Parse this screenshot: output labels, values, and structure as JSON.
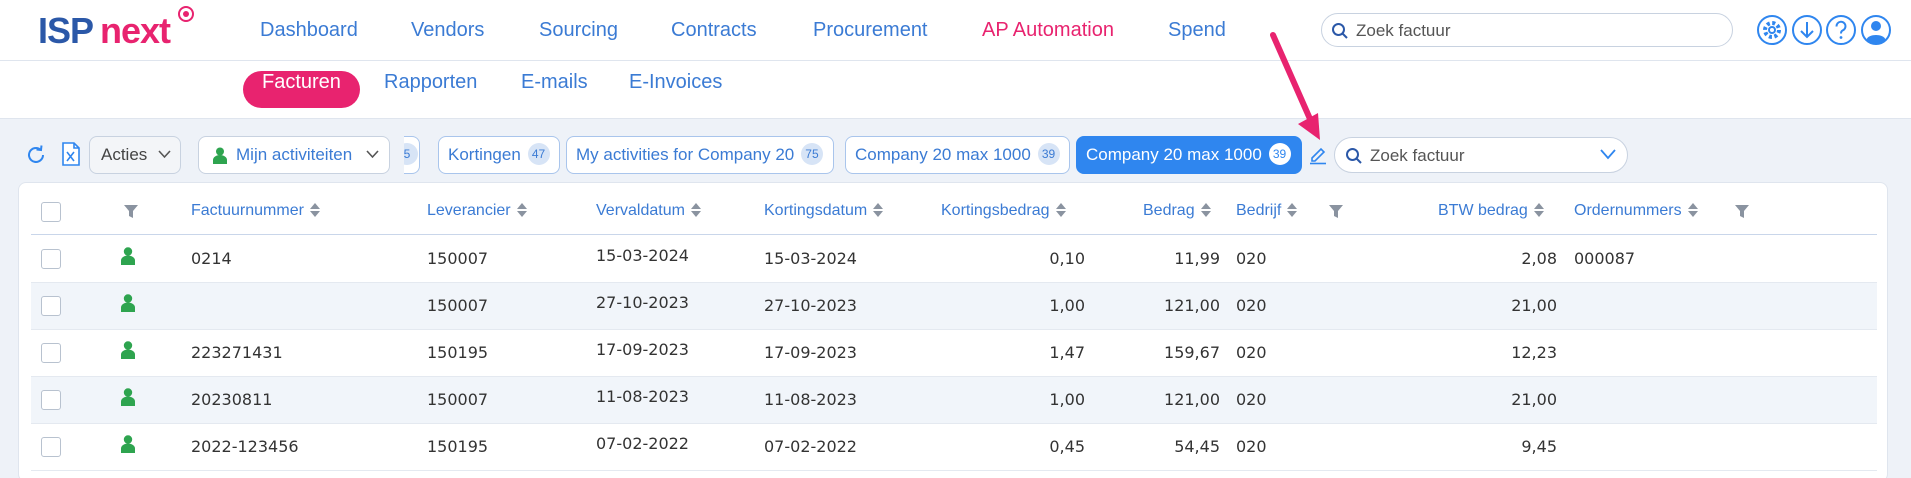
{
  "brand": {
    "part1": "ISP",
    "part2": "next"
  },
  "nav": [
    {
      "label": "Dashboard",
      "active": false
    },
    {
      "label": "Vendors",
      "active": false
    },
    {
      "label": "Sourcing",
      "active": false
    },
    {
      "label": "Contracts",
      "active": false
    },
    {
      "label": "Procurement",
      "active": false
    },
    {
      "label": "AP Automation",
      "active": true
    },
    {
      "label": "Spend",
      "active": false
    }
  ],
  "top_search": {
    "placeholder": "Zoek factuur"
  },
  "top_icons": [
    "gear-icon",
    "download-icon",
    "help-icon",
    "user-icon"
  ],
  "subnav": [
    {
      "label": "Facturen",
      "active": true
    },
    {
      "label": "Rapporten",
      "active": false
    },
    {
      "label": "E-mails",
      "active": false
    },
    {
      "label": "E-Invoices",
      "active": false
    }
  ],
  "toolbar": {
    "actions_label": "Acties",
    "my_activities_label": "Mijn activiteiten",
    "truncated_count": "5",
    "filters": [
      {
        "label": "Kortingen",
        "count": "47",
        "active": false
      },
      {
        "label": "My activities for Company 20",
        "count": "75",
        "active": false
      },
      {
        "label": "Company 20 max 1000",
        "count": "39",
        "active": false
      },
      {
        "label": "Company 20 max 1000",
        "count": "39",
        "active": true
      }
    ],
    "search_placeholder": "Zoek factuur"
  },
  "table": {
    "columns": [
      "Factuurnummer",
      "Leverancier",
      "Vervaldatum",
      "Kortingsdatum",
      "Kortingsbedrag",
      "Bedrag",
      "Bedrijf",
      "BTW bedrag",
      "Ordernummers"
    ],
    "rows": [
      {
        "factuurnummer": "0214",
        "leverancier": "150007",
        "vervaldatum": "15-03-2024",
        "kortingsdatum": "15-03-2024",
        "kortingsbedrag": "0,10",
        "bedrag": "11,99",
        "bedrijf": "020",
        "btw": "2,08",
        "ordernummers": "000087"
      },
      {
        "factuurnummer": "",
        "leverancier": "150007",
        "vervaldatum": "27-10-2023",
        "kortingsdatum": "27-10-2023",
        "kortingsbedrag": "1,00",
        "bedrag": "121,00",
        "bedrijf": "020",
        "btw": "21,00",
        "ordernummers": ""
      },
      {
        "factuurnummer": "223271431",
        "leverancier": "150195",
        "vervaldatum": "17-09-2023",
        "kortingsdatum": "17-09-2023",
        "kortingsbedrag": "1,47",
        "bedrag": "159,67",
        "bedrijf": "020",
        "btw": "12,23",
        "ordernummers": ""
      },
      {
        "factuurnummer": "20230811",
        "leverancier": "150007",
        "vervaldatum": "11-08-2023",
        "kortingsdatum": "11-08-2023",
        "kortingsbedrag": "1,00",
        "bedrag": "121,00",
        "bedrijf": "020",
        "btw": "21,00",
        "ordernummers": ""
      },
      {
        "factuurnummer": "2022-123456",
        "leverancier": "150195",
        "vervaldatum": "07-02-2022",
        "kortingsdatum": "07-02-2022",
        "kortingsbedrag": "0,45",
        "bedrag": "54,45",
        "bedrijf": "020",
        "btw": "9,45",
        "ordernummers": ""
      }
    ]
  },
  "colors": {
    "brand_blue": "#2b58a8",
    "accent_pink": "#e8236f",
    "link_blue": "#3b7bd4",
    "active_filter": "#2f86ef",
    "activity_green": "#2ea44f"
  }
}
